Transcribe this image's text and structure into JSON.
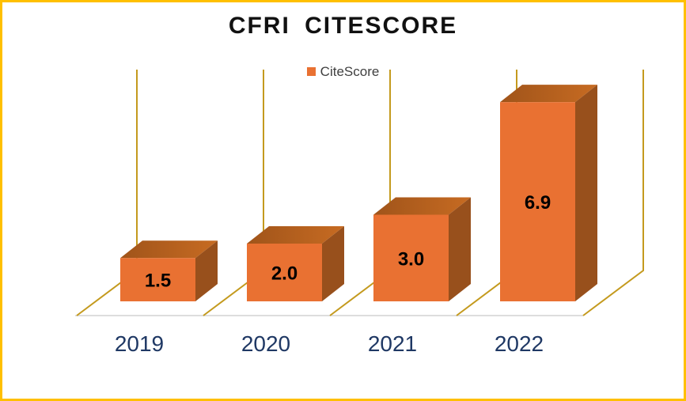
{
  "window": {
    "background": "#FFFFFF",
    "border_color": "#FFC000"
  },
  "chart": {
    "title": "CFRI CITESCORE",
    "legend": {
      "label": "CiteScore",
      "marker_color": "#E97132",
      "position": "top"
    }
  },
  "chart_data": {
    "type": "bar",
    "projection": "3d-column",
    "title": "CFRI CITESCORE",
    "categories": [
      "2019",
      "2020",
      "2021",
      "2022"
    ],
    "series": [
      {
        "name": "CiteScore",
        "values": [
          1.5,
          2.0,
          3.0,
          6.9
        ],
        "color": "#E97132"
      }
    ],
    "data_labels": [
      "1.5",
      "2.0",
      "3.0",
      "6.9"
    ],
    "xlabel": "",
    "ylabel": "",
    "value_axis_visible": false,
    "ylim": [
      0,
      8
    ],
    "grid": true,
    "legend_position": "top",
    "colors": {
      "bar_front": "#E97132",
      "bar_top_dark": "#A0541A",
      "bar_top_light": "#C76B22",
      "bar_side": "#98501C",
      "gridline": "#C49A1E",
      "floor_edge": "#DDDDDD",
      "category_label": "#1F3864",
      "data_label": "#000000"
    }
  }
}
